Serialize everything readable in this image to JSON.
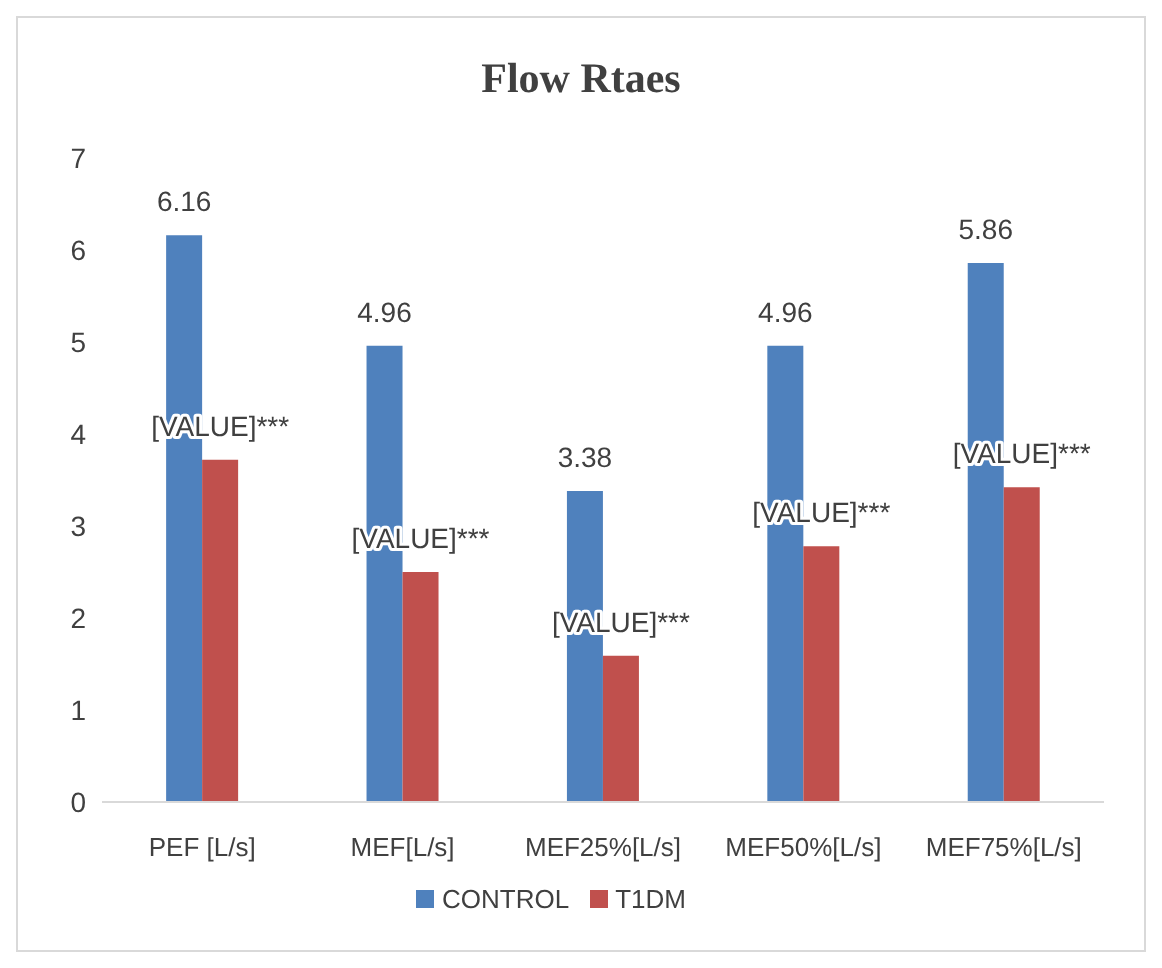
{
  "chart_data": {
    "type": "bar",
    "title": "Flow Rtaes",
    "categories": [
      "PEF [L/s]",
      "MEF[L/s]",
      "MEF25%[L/s]",
      "MEF50%[L/s]",
      "MEF75%[L/s]"
    ],
    "series": [
      {
        "name": "CONTROL",
        "color": "#4f81bd",
        "values": [
          6.16,
          4.96,
          3.38,
          4.96,
          5.86
        ],
        "value_labels": [
          "6.16",
          "4.96",
          "3.38",
          "4.96",
          "5.86"
        ]
      },
      {
        "name": "T1DM",
        "color": "#c0504d",
        "values": [
          3.72,
          2.5,
          1.59,
          2.78,
          3.42
        ],
        "value_labels": [
          "[VALUE]***",
          "[VALUE]***",
          "[VALUE]***",
          "[VALUE]***",
          "[VALUE]***"
        ]
      }
    ],
    "ylim": [
      0,
      7
    ],
    "yticks": [
      0,
      1,
      2,
      3,
      4,
      5,
      6,
      7
    ],
    "grid": false,
    "legend": "bottom"
  }
}
